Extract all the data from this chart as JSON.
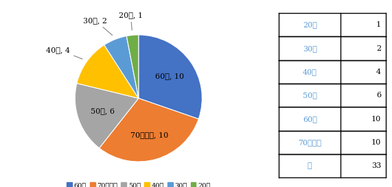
{
  "labels": [
    "60代",
    "70代以上",
    "50代",
    "40代",
    "30代",
    "20代"
  ],
  "values": [
    10,
    10,
    6,
    4,
    2,
    1
  ],
  "colors": [
    "#4472C4",
    "#ED7D31",
    "#A5A5A5",
    "#FFC000",
    "#5B9BD5",
    "#70AD47"
  ],
  "table_rows": [
    [
      "20代",
      "1"
    ],
    [
      "30代",
      "2"
    ],
    [
      "40代",
      "4"
    ],
    [
      "50代",
      "6"
    ],
    [
      "60代",
      "10"
    ],
    [
      "70代以上",
      "10"
    ],
    [
      "計",
      "33"
    ]
  ],
  "legend_order": [
    "60代",
    "70代以上",
    "50代",
    "40代",
    "30代",
    "20代"
  ],
  "background_color": "#FFFFFF",
  "label_fontsize": 8.0,
  "legend_fontsize": 7.0,
  "table_fontsize": 8.0,
  "table_color_col1": "#5B9BD5",
  "table_color_col2": "#000000"
}
